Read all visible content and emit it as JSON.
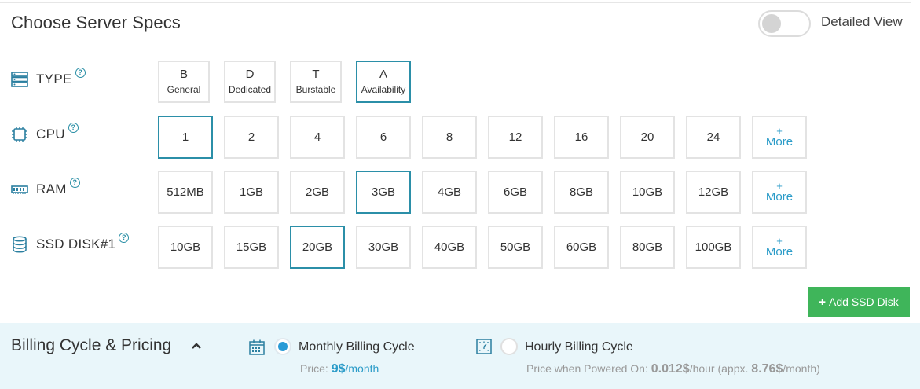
{
  "header": {
    "title": "Choose Server Specs",
    "detailed_view_label": "Detailed View",
    "detailed_view_on": false
  },
  "type": {
    "label": "TYPE",
    "options": [
      {
        "letter": "B",
        "name": "General",
        "selected": false
      },
      {
        "letter": "D",
        "name": "Dedicated",
        "selected": false
      },
      {
        "letter": "T",
        "name": "Burstable",
        "selected": false
      },
      {
        "letter": "A",
        "name": "Availability",
        "selected": true
      }
    ]
  },
  "cpu": {
    "label": "CPU",
    "options": [
      "1",
      "2",
      "4",
      "6",
      "8",
      "12",
      "16",
      "20",
      "24"
    ],
    "selected": "1",
    "more_plus": "+",
    "more_label": "More"
  },
  "ram": {
    "label": "RAM",
    "options": [
      "512MB",
      "1GB",
      "2GB",
      "3GB",
      "4GB",
      "6GB",
      "8GB",
      "10GB",
      "12GB"
    ],
    "selected": "3GB",
    "more_plus": "+",
    "more_label": "More"
  },
  "ssd": {
    "label": "SSD DISK#1",
    "options": [
      "10GB",
      "15GB",
      "20GB",
      "30GB",
      "40GB",
      "50GB",
      "60GB",
      "80GB",
      "100GB"
    ],
    "selected": "20GB",
    "more_plus": "+",
    "more_label": "More"
  },
  "add_ssd": {
    "plus": "+",
    "label": "Add SSD Disk"
  },
  "billing": {
    "title": "Billing Cycle & Pricing",
    "monthly": {
      "label": "Monthly Billing Cycle",
      "selected": true,
      "price_prefix": "Price: ",
      "price_value": "9$",
      "price_unit": "/month"
    },
    "hourly": {
      "label": "Hourly Billing Cycle",
      "selected": false,
      "price_prefix": "Price when Powered On: ",
      "price_value": "0.012$",
      "price_unit": "/hour (appx. ",
      "approx_value": "8.76$",
      "approx_unit": "/month)"
    }
  },
  "colors": {
    "accent": "#2b8fa8",
    "link": "#2a9bc8",
    "button_green": "#3fb55a",
    "billing_bg": "#e9f6fa"
  }
}
